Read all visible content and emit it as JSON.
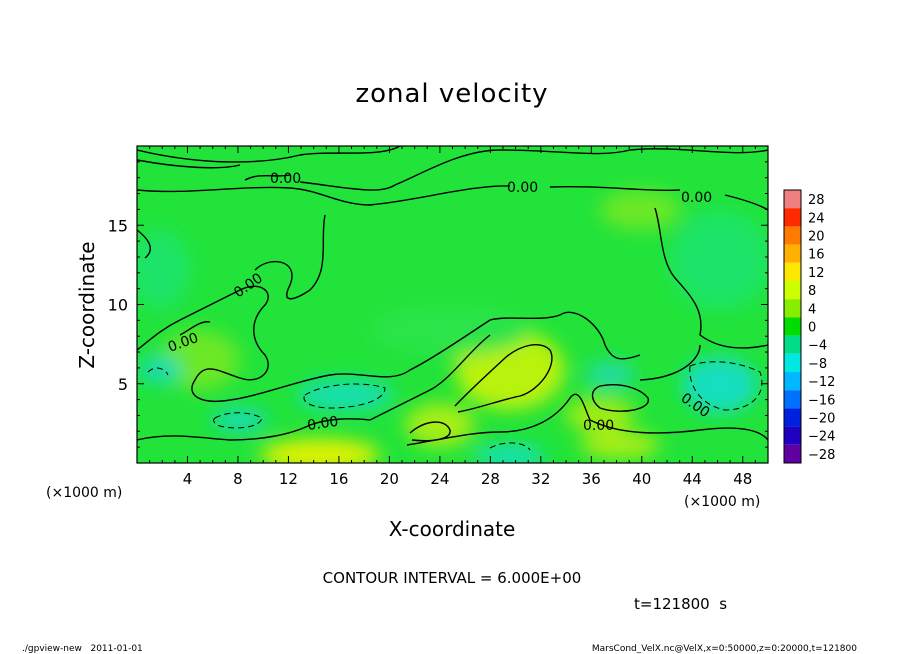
{
  "chart_data": {
    "type": "heatmap",
    "title": "zonal velocity",
    "xlabel": "X-coordinate",
    "ylabel": "Z-coordinate",
    "x_unit_label": "(×1000 m)",
    "y_unit_label": "(×1000 m)",
    "xlim": [
      0,
      50
    ],
    "ylim": [
      0,
      20
    ],
    "x_ticks": [
      4,
      8,
      12,
      16,
      20,
      24,
      28,
      32,
      36,
      40,
      44,
      48
    ],
    "y_ticks": [
      5,
      10,
      15
    ],
    "colorbar_levels": [
      28,
      24,
      20,
      16,
      12,
      8,
      4,
      0,
      -4,
      -8,
      -12,
      -16,
      -20,
      -24,
      -28
    ],
    "colorbar_colors": [
      "#f08080",
      "#ff2a00",
      "#ff7a00",
      "#ffb000",
      "#ffe800",
      "#ccff00",
      "#88ee00",
      "#00dd00",
      "#00dd88",
      "#00e8e0",
      "#00b8ff",
      "#0070ff",
      "#0020e0",
      "#2000c0",
      "#6000a0"
    ],
    "contour_labels": [
      {
        "text": "0.00",
        "x": 12.0,
        "z": 18.0
      },
      {
        "text": "0.00",
        "x": 30.5,
        "z": 17.3
      },
      {
        "text": "0.00",
        "x": 44.5,
        "z": 16.6
      },
      {
        "text": "0.00",
        "x": 9.5,
        "z": 11.0
      },
      {
        "text": "0.00",
        "x": 4.2,
        "z": 7.7
      },
      {
        "text": "0.00",
        "x": 15.0,
        "z": 2.4
      },
      {
        "text": "0.00",
        "x": 37.0,
        "z": 2.4
      },
      {
        "text": "0.00",
        "x": 44.0,
        "z": 3.7
      }
    ],
    "contour_interval_text": "CONTOUR INTERVAL = 6.000E+00",
    "time_text": "t=121800  s",
    "legend": "right"
  },
  "footer": {
    "left": "./gpview-new   2011-01-01",
    "right": "MarsCond_VelX.nc@VelX,x=0:50000,z=0:20000,t=121800"
  }
}
